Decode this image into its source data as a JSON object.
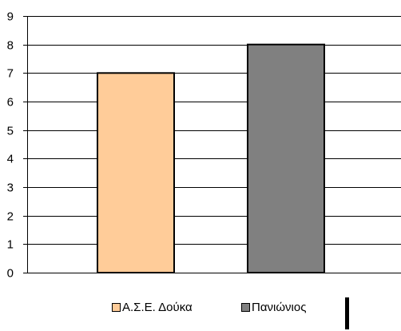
{
  "chart_data": {
    "type": "bar",
    "categories": [
      "Α.Σ.Ε. Δούκα",
      "Πανιώνιος"
    ],
    "values": [
      7,
      8
    ],
    "colors": [
      "#FFCC99",
      "#808080"
    ],
    "ylim": [
      0,
      9
    ],
    "yticks": [
      0,
      1,
      2,
      3,
      4,
      5,
      6,
      7,
      8,
      9
    ],
    "grid": true,
    "legend_position": "bottom",
    "title": "",
    "xlabel": "",
    "ylabel": ""
  },
  "legend": {
    "items": [
      {
        "label": "Α.Σ.Ε. Δούκα",
        "color": "#FFCC99"
      },
      {
        "label": "Πανιώνιος",
        "color": "#808080"
      }
    ]
  }
}
